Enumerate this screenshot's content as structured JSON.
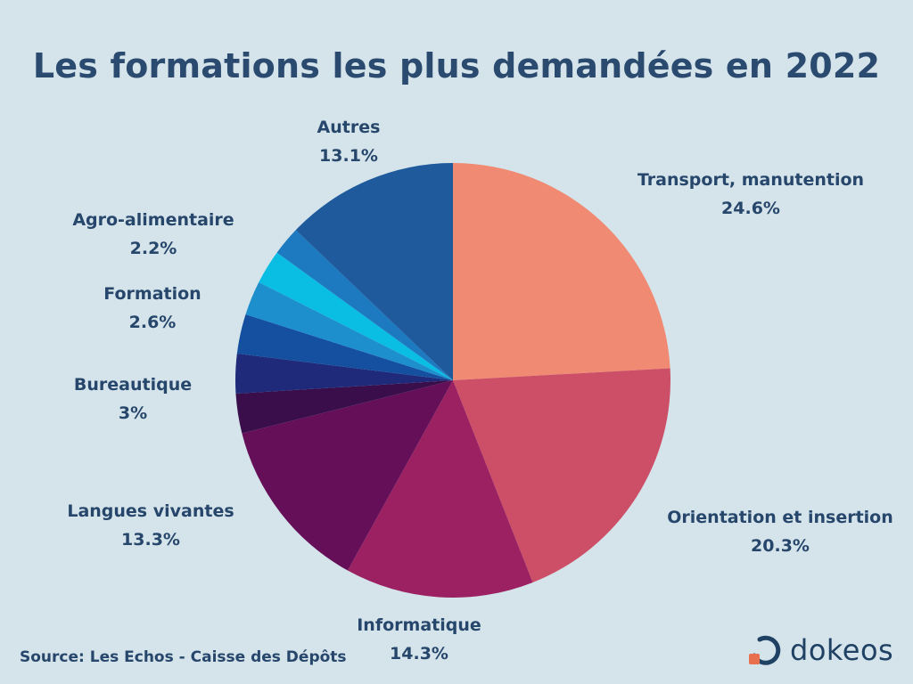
{
  "title": "Les formations les plus demandées en 2022",
  "source": "Source: Les Echos - Caisse des Dépôts",
  "brand": {
    "name": "dokeos",
    "logo_icon": "dokeos-logo-icon",
    "logo_color": "#e8704f"
  },
  "chart_data": {
    "type": "pie",
    "title": "Les formations les plus demandées en 2022",
    "slices": [
      {
        "label": "Transport, manutention",
        "display": "24.6%",
        "value": 24.6,
        "color": "#f08a73"
      },
      {
        "label": "Orientation et insertion",
        "display": "20.3%",
        "value": 20.3,
        "color": "#cc4f67"
      },
      {
        "label": "Informatique",
        "display": "14.3%",
        "value": 14.3,
        "color": "#9b2162"
      },
      {
        "label": "Langues vivantes",
        "display": "13.3%",
        "value": 13.3,
        "color": "#650f58"
      },
      {
        "label": "",
        "display": "",
        "value": 3.0,
        "color": "#3a0e4b"
      },
      {
        "label": "Bureautique",
        "display": "3%",
        "value": 3.0,
        "color": "#1f2a7a"
      },
      {
        "label": "",
        "display": "",
        "value": 3.0,
        "color": "#1550a0"
      },
      {
        "label": "Formation",
        "display": "2.6%",
        "value": 2.6,
        "color": "#1c8fcc"
      },
      {
        "label": "",
        "display": "",
        "value": 2.6,
        "color": "#0abde3"
      },
      {
        "label": "Agro-alimentaire",
        "display": "2.2%",
        "value": 2.2,
        "color": "#1d7ac0"
      },
      {
        "label": "Autres",
        "display": "13.1%",
        "value": 13.1,
        "color": "#1e5a9c"
      }
    ]
  }
}
